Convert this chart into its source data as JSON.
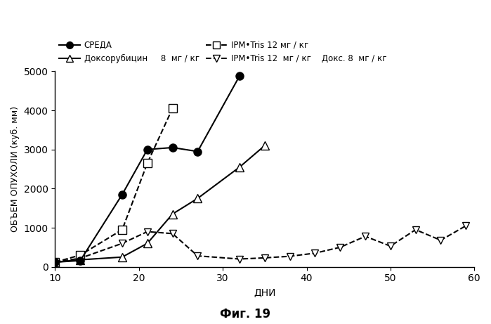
{
  "title": "Фиг. 19",
  "xlabel": "ДНИ",
  "ylabel": "ОБЪЕМ ОПУХОЛИ (куб. мм)",
  "xlim": [
    10,
    60
  ],
  "ylim": [
    0,
    5000
  ],
  "xticks": [
    10,
    20,
    30,
    40,
    50,
    60
  ],
  "yticks": [
    0,
    1000,
    2000,
    3000,
    4000,
    5000
  ],
  "sreda_x": [
    10,
    13,
    18,
    21,
    24,
    27,
    32
  ],
  "sreda_y": [
    120,
    160,
    1850,
    3000,
    3050,
    2950,
    4880
  ],
  "ipm_tris_x": [
    10,
    13,
    18,
    21,
    24
  ],
  "ipm_tris_y": [
    120,
    300,
    950,
    2650,
    4050
  ],
  "doxo_x": [
    10,
    13,
    18,
    21,
    24,
    27,
    32,
    35
  ],
  "doxo_y": [
    120,
    180,
    250,
    600,
    1350,
    1750,
    2550,
    3100
  ],
  "ipm_tris_doxo_x": [
    10,
    13,
    18,
    21,
    24,
    27,
    32,
    35,
    38,
    41,
    44,
    47,
    50,
    53,
    56,
    59
  ],
  "ipm_tris_doxo_y": [
    120,
    220,
    600,
    900,
    850,
    280,
    200,
    230,
    270,
    350,
    500,
    780,
    530,
    950,
    680,
    1050
  ],
  "legend_sreda": "СРЕДА",
  "legend_doxo": "Доксорубицин     8  мг / кг",
  "legend_ipm_tris": "IPM•Tris 12 мг / кг",
  "legend_ipm_tris_doxo": "IPM•Tris 12  мг / кг    Докс. 8  мг / кг",
  "background_color": "#ffffff",
  "line_color": "#000000"
}
